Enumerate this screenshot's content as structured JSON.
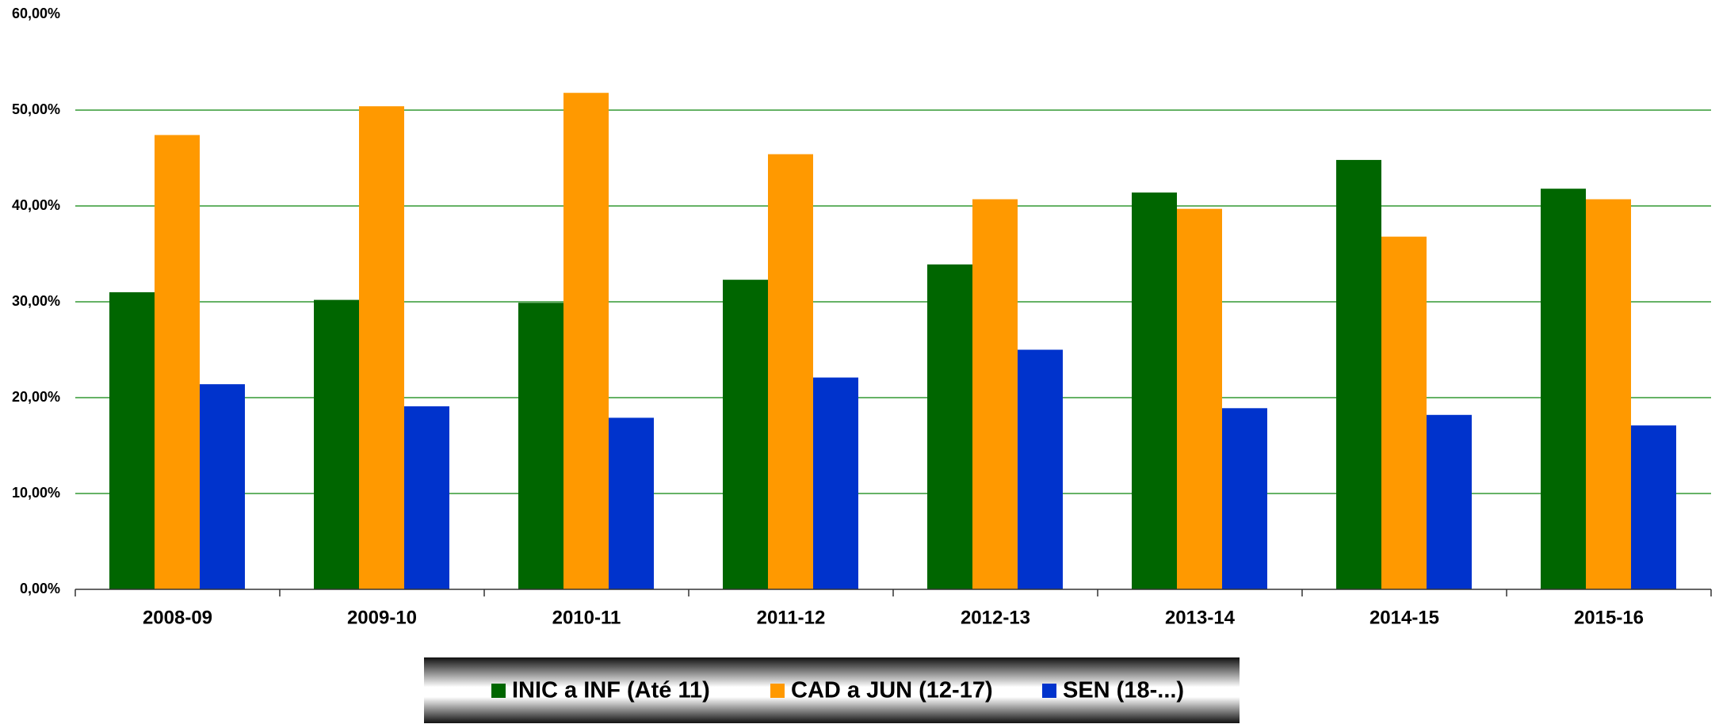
{
  "chart_data": {
    "type": "bar",
    "categories": [
      "2008-09",
      "2009-10",
      "2010-11",
      "2011-12",
      "2012-13",
      "2013-14",
      "2014-15",
      "2015-16"
    ],
    "series": [
      {
        "name": "INIC a INF (Até 11)",
        "color": "#006600",
        "values": [
          31.0,
          30.2,
          29.9,
          32.3,
          33.9,
          41.4,
          44.8,
          41.8
        ]
      },
      {
        "name": "CAD a JUN (12-17)",
        "color": "#ff9900",
        "values": [
          47.4,
          50.4,
          51.8,
          45.4,
          40.7,
          39.7,
          36.8,
          40.7
        ]
      },
      {
        "name": "SEN (18-...)",
        "color": "#0033cc",
        "values": [
          21.4,
          19.1,
          17.9,
          22.1,
          25.0,
          18.9,
          18.2,
          17.1
        ]
      }
    ],
    "ylim": [
      0,
      60
    ],
    "yticks": [
      {
        "value": 0,
        "label": "0,00%"
      },
      {
        "value": 10,
        "label": "10,00%"
      },
      {
        "value": 20,
        "label": "20,00%"
      },
      {
        "value": 30,
        "label": "30,00%"
      },
      {
        "value": 40,
        "label": "40,00%"
      },
      {
        "value": 50,
        "label": "50,00%"
      },
      {
        "value": 60,
        "label": "60,00%"
      }
    ],
    "grid": true,
    "legend": "bottom"
  }
}
